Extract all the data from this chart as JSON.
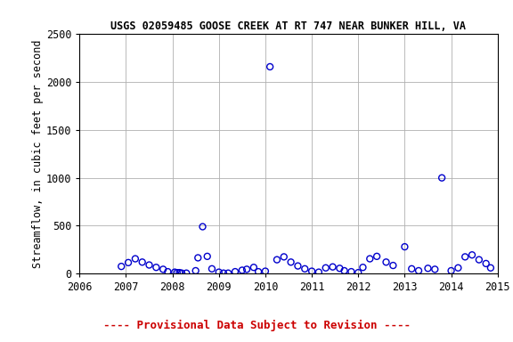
{
  "title": "USGS 02059485 GOOSE CREEK AT RT 747 NEAR BUNKER HILL, VA",
  "ylabel": "Streamflow, in cubic feet per second",
  "xlabel": "",
  "xlim": [
    2006,
    2015
  ],
  "ylim": [
    0,
    2500
  ],
  "yticks": [
    0,
    500,
    1000,
    1500,
    2000,
    2500
  ],
  "xticks": [
    2006,
    2007,
    2008,
    2009,
    2010,
    2011,
    2012,
    2013,
    2014,
    2015
  ],
  "marker_color": "#0000cc",
  "marker_size": 5,
  "footnote": "---- Provisional Data Subject to Revision ----",
  "footnote_color": "#cc0000",
  "data_x": [
    2006.9,
    2007.05,
    2007.2,
    2007.35,
    2007.5,
    2007.65,
    2007.8,
    2007.9,
    2008.05,
    2008.1,
    2008.15,
    2008.2,
    2008.3,
    2008.5,
    2008.55,
    2008.65,
    2008.75,
    2008.85,
    2009.0,
    2009.1,
    2009.2,
    2009.35,
    2009.5,
    2009.6,
    2009.75,
    2009.85,
    2010.0,
    2010.1,
    2010.25,
    2010.4,
    2010.55,
    2010.7,
    2010.85,
    2011.0,
    2011.15,
    2011.3,
    2011.45,
    2011.6,
    2011.7,
    2011.85,
    2012.0,
    2012.1,
    2012.25,
    2012.4,
    2012.6,
    2012.75,
    2013.0,
    2013.15,
    2013.3,
    2013.5,
    2013.65,
    2013.8,
    2014.0,
    2014.15,
    2014.3,
    2014.45,
    2014.6,
    2014.75,
    2014.85
  ],
  "data_y": [
    75,
    115,
    155,
    120,
    90,
    65,
    45,
    20,
    15,
    10,
    10,
    5,
    5,
    30,
    165,
    490,
    180,
    50,
    15,
    5,
    5,
    20,
    35,
    45,
    65,
    20,
    25,
    2160,
    145,
    175,
    120,
    80,
    50,
    25,
    15,
    60,
    70,
    55,
    30,
    20,
    10,
    65,
    155,
    180,
    120,
    85,
    280,
    50,
    30,
    55,
    45,
    1000,
    30,
    60,
    175,
    195,
    145,
    105,
    60
  ],
  "background_color": "#ffffff",
  "grid_color": "#b0b0b0",
  "title_fontsize": 8.5,
  "label_fontsize": 8.5,
  "tick_fontsize": 8.5,
  "footnote_fontsize": 9
}
